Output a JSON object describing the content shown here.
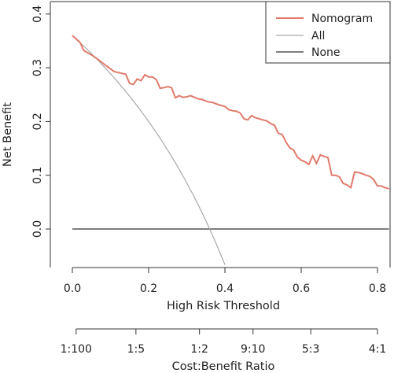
{
  "chart_data": {
    "type": "line",
    "xlabel": "High Risk Threshold",
    "ylabel": "Net Benefit",
    "secondary_xlabel": "Cost:Benefit Ratio",
    "xlim": [
      0,
      0.83
    ],
    "ylim": [
      -0.07,
      0.4
    ],
    "x_ticks": [
      "0.0",
      "0.2",
      "0.4",
      "0.6",
      "0.8"
    ],
    "x_tick_values": [
      0,
      0.2,
      0.4,
      0.6,
      0.8
    ],
    "y_ticks": [
      "0.0",
      "0.1",
      "0.2",
      "0.3",
      "0.4"
    ],
    "y_tick_values": [
      0,
      0.1,
      0.2,
      0.3,
      0.4
    ],
    "secondary_ticks": [
      "1:100",
      "1:5",
      "1:2",
      "9:10",
      "5:3",
      "4:1"
    ],
    "secondary_tick_values": [
      0.0099,
      0.1667,
      0.3333,
      0.4737,
      0.625,
      0.8
    ],
    "grid": false,
    "legend_position": "top-right",
    "series": [
      {
        "name": "Nomogram",
        "color": "#e07b6b",
        "x": [
          0,
          0.02,
          0.03,
          0.05,
          0.07,
          0.09,
          0.11,
          0.12,
          0.14,
          0.15,
          0.16,
          0.17,
          0.18,
          0.19,
          0.2,
          0.21,
          0.22,
          0.23,
          0.24,
          0.25,
          0.26,
          0.27,
          0.28,
          0.29,
          0.3,
          0.31,
          0.32,
          0.33,
          0.34,
          0.35,
          0.36,
          0.37,
          0.38,
          0.39,
          0.4,
          0.41,
          0.42,
          0.43,
          0.44,
          0.45,
          0.46,
          0.47,
          0.48,
          0.49,
          0.5,
          0.51,
          0.52,
          0.53,
          0.54,
          0.55,
          0.56,
          0.57,
          0.58,
          0.59,
          0.6,
          0.61,
          0.62,
          0.63,
          0.64,
          0.65,
          0.66,
          0.67,
          0.68,
          0.69,
          0.7,
          0.71,
          0.72,
          0.73,
          0.74,
          0.75,
          0.76,
          0.77,
          0.78,
          0.79,
          0.8,
          0.81,
          0.82,
          0.83
        ],
        "y": [
          0.36,
          0.347,
          0.332,
          0.324,
          0.314,
          0.303,
          0.293,
          0.291,
          0.288,
          0.271,
          0.269,
          0.279,
          0.276,
          0.287,
          0.283,
          0.283,
          0.278,
          0.262,
          0.263,
          0.265,
          0.263,
          0.244,
          0.248,
          0.245,
          0.246,
          0.248,
          0.245,
          0.242,
          0.241,
          0.238,
          0.236,
          0.235,
          0.232,
          0.23,
          0.228,
          0.222,
          0.22,
          0.219,
          0.216,
          0.205,
          0.203,
          0.211,
          0.207,
          0.205,
          0.203,
          0.201,
          0.196,
          0.193,
          0.178,
          0.176,
          0.162,
          0.151,
          0.147,
          0.134,
          0.128,
          0.125,
          0.12,
          0.136,
          0.122,
          0.138,
          0.135,
          0.133,
          0.1,
          0.1,
          0.097,
          0.085,
          0.082,
          0.077,
          0.106,
          0.105,
          0.103,
          0.1,
          0.098,
          0.092,
          0.08,
          0.08,
          0.077,
          0.075
        ]
      },
      {
        "name": "All",
        "color": "#a8a8a8",
        "formula": "0.36 - 0.64*x/(1-x)"
      },
      {
        "name": "None",
        "color": "#333333",
        "x": [
          0,
          0.83
        ],
        "y": [
          0,
          0
        ]
      }
    ]
  }
}
